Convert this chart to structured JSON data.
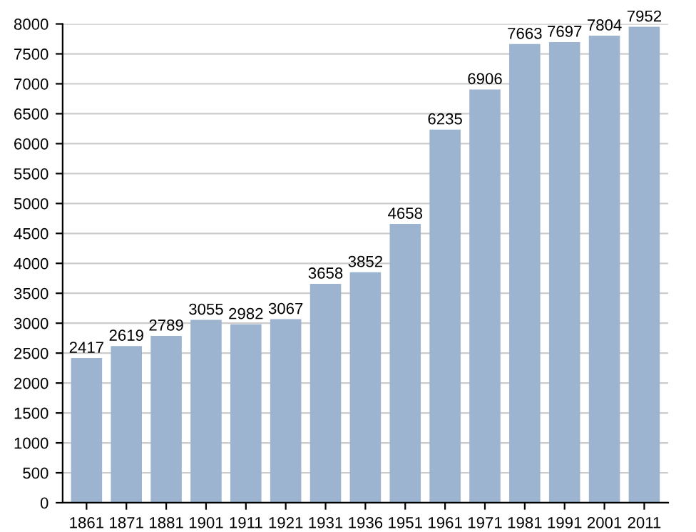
{
  "chart_data": {
    "type": "bar",
    "categories": [
      "1861",
      "1871",
      "1881",
      "1901",
      "1911",
      "1921",
      "1931",
      "1936",
      "1951",
      "1961",
      "1971",
      "1981",
      "1991",
      "2001",
      "2011"
    ],
    "values": [
      2417,
      2619,
      2789,
      3055,
      2982,
      3067,
      3658,
      3852,
      4658,
      6235,
      6906,
      7663,
      7697,
      7804,
      7952
    ],
    "color": "#9cb4cf",
    "ylim": [
      0,
      8000
    ],
    "yticks": [
      0,
      500,
      1000,
      1500,
      2000,
      2500,
      3000,
      3500,
      4000,
      4500,
      5000,
      5500,
      6000,
      6500,
      7000,
      7500,
      8000
    ],
    "grid": "y",
    "data_labels": true
  }
}
